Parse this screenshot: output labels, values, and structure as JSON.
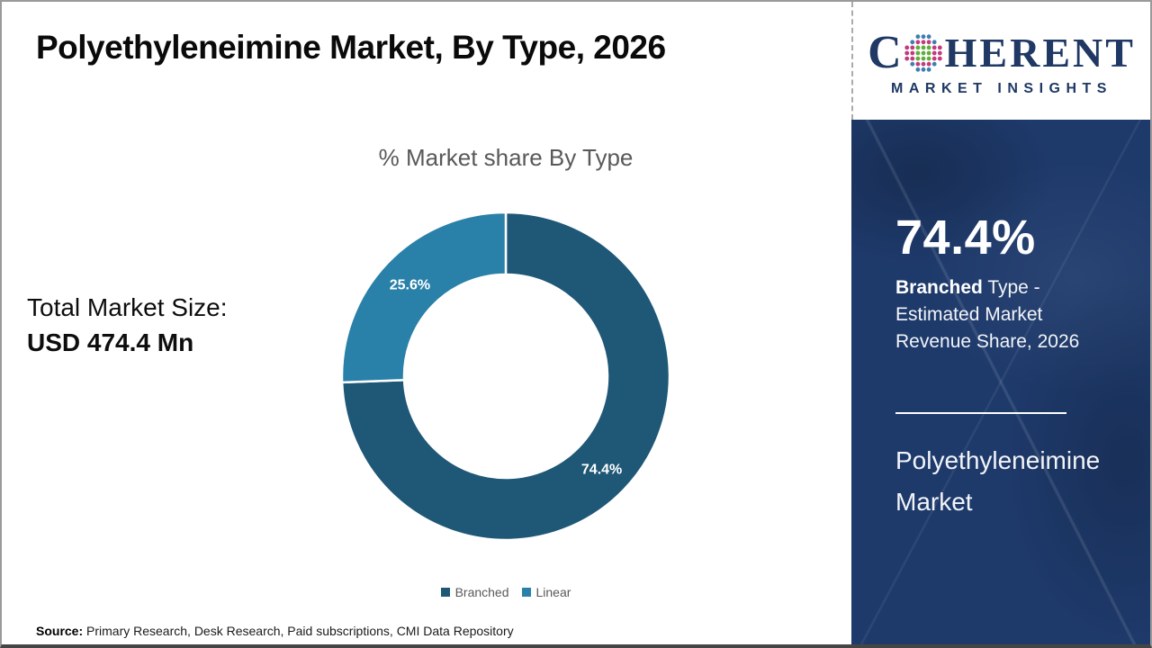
{
  "header": {
    "title": "Polyethyleneimine Market, By Type, 2026"
  },
  "logo": {
    "letter_c": "C",
    "word_rest": "HERENT",
    "subtitle": "MARKET INSIGHTS",
    "colors": {
      "navy": "#1f3864",
      "green": "#5fae3c",
      "magenta": "#c33a7e",
      "blue": "#3c7fb0"
    }
  },
  "chart_data": {
    "type": "pie",
    "donut": true,
    "title": "% Market share By Type",
    "categories": [
      "Branched",
      "Linear"
    ],
    "values": [
      74.4,
      25.6
    ],
    "labels": [
      "74.4%",
      "25.6%"
    ],
    "colors": [
      "#1f5776",
      "#2980a8"
    ],
    "start_angle_deg": 0,
    "direction": "clockwise",
    "legend_position": "bottom",
    "outer_radius": 182,
    "inner_radius": 113,
    "label_radius": 148
  },
  "left_panel": {
    "line1": "Total Market Size:",
    "line2": "USD 474.4 Mn"
  },
  "sidebar": {
    "bg": "#1e3a6b",
    "stat_value": "74.4%",
    "stat_bold": "Branched",
    "stat_rest": " Type - Estimated Market Revenue Share, 2026",
    "market_name": "Polyethyleneimine Market"
  },
  "footer": {
    "source_label": "Source:",
    "source_text": " Primary Research, Desk Research, Paid subscriptions, CMI Data Repository"
  }
}
